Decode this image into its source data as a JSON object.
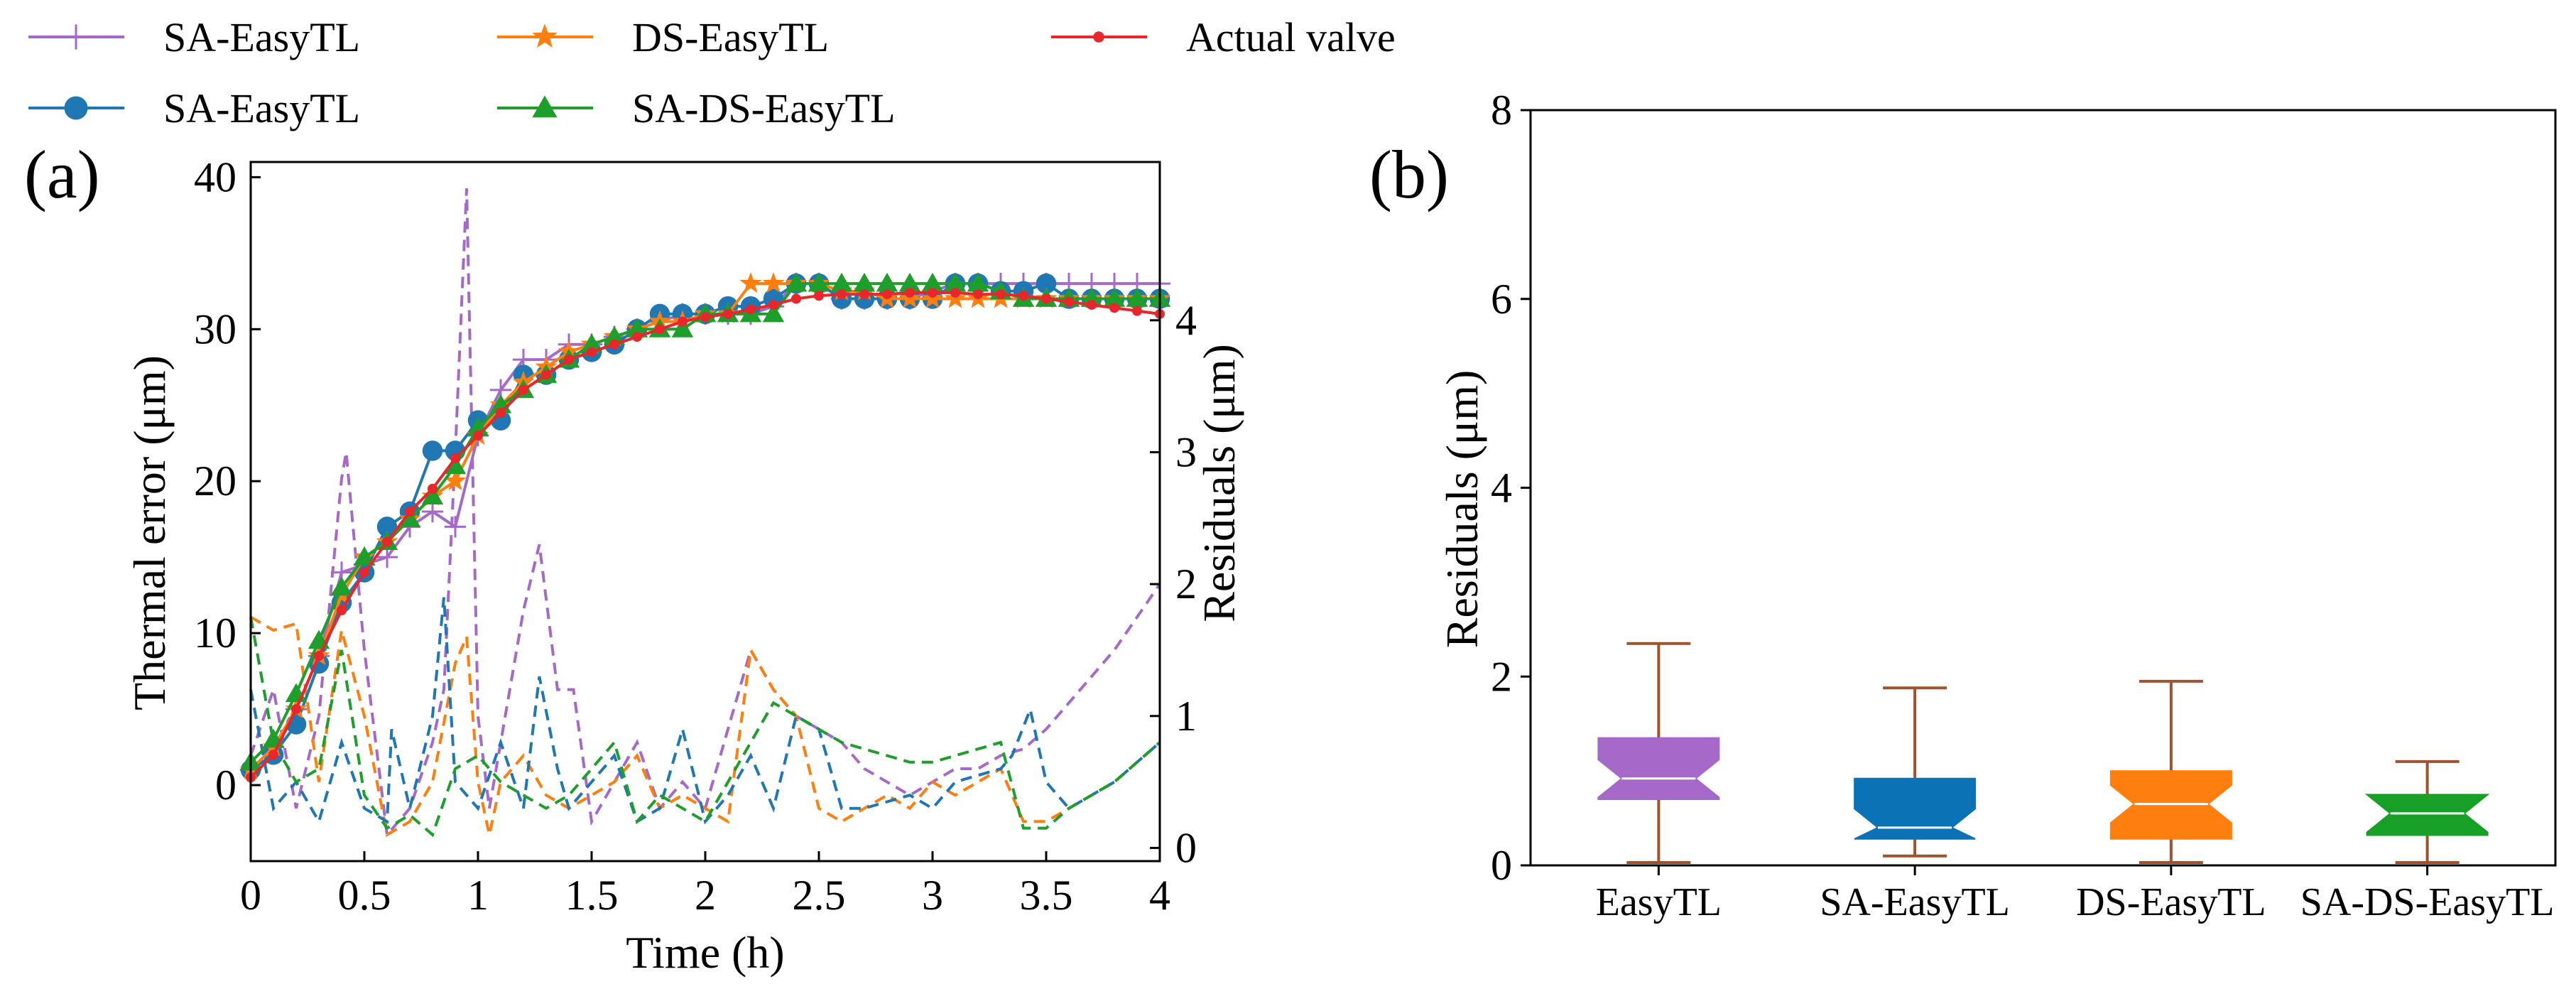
{
  "legend": {
    "items": [
      {
        "label": "SA-EasyTL",
        "color": "#a569c9",
        "marker": "plus"
      },
      {
        "label": "DS-EasyTL",
        "color": "#ff7f0e",
        "marker": "star"
      },
      {
        "label": "Actual valve",
        "color": "#e8262b",
        "marker": "dot"
      },
      {
        "label": "SA-EasyTL",
        "color": "#1f77b4",
        "marker": "circle"
      },
      {
        "label": "SA-DS-EasyTL",
        "color": "#1e9e2a",
        "marker": "triangle"
      }
    ]
  },
  "chart_data": [
    {
      "panel_label": "(a)",
      "type": "line",
      "xlabel": "Time (h)",
      "ylabel": "Thermal error (μm)",
      "y2label": "Residuals (μm)",
      "xlim": [
        0,
        4
      ],
      "ylim": [
        -5,
        41
      ],
      "y2lim": [
        -0.1,
        5.2
      ],
      "xticks": [
        0,
        0.5,
        1,
        1.5,
        2,
        2.5,
        3,
        3.5,
        4
      ],
      "xtick_labels": [
        "0",
        "0.5",
        "1",
        "1.5",
        "2",
        "2.5",
        "3",
        "3.5",
        "4"
      ],
      "yticks": [
        0,
        10,
        20,
        30,
        40
      ],
      "ytick_labels": [
        "0",
        "10",
        "20",
        "30",
        "40"
      ],
      "y2ticks": [
        0,
        1,
        2,
        3,
        4
      ],
      "y2tick_labels": [
        "0",
        "1",
        "2",
        "3",
        "4"
      ],
      "x": [
        0,
        0.1,
        0.2,
        0.3,
        0.4,
        0.5,
        0.6,
        0.7,
        0.8,
        0.9,
        1.0,
        1.1,
        1.2,
        1.3,
        1.4,
        1.5,
        1.6,
        1.7,
        1.8,
        1.9,
        2.0,
        2.1,
        2.2,
        2.3,
        2.4,
        2.5,
        2.6,
        2.7,
        2.8,
        2.9,
        3.0,
        3.1,
        3.2,
        3.3,
        3.4,
        3.5,
        3.6,
        3.7,
        3.8,
        3.9,
        4.0
      ],
      "series": [
        {
          "name": "SA-EasyTL",
          "color": "#a569c9",
          "marker": "plus",
          "values": [
            1,
            2.5,
            5,
            8.5,
            14,
            14.5,
            15,
            17,
            18,
            17,
            23,
            26,
            28,
            28,
            29,
            29,
            29.5,
            30,
            30.5,
            31,
            31,
            31,
            31,
            31.5,
            33,
            33,
            32,
            32,
            32,
            32,
            32.5,
            33,
            33,
            33,
            33,
            33,
            33,
            33,
            33,
            33,
            33
          ]
        },
        {
          "name": "SA-EasyTL",
          "color": "#1f77b4",
          "marker": "circle",
          "values": [
            1,
            2,
            4,
            8,
            12,
            14,
            17,
            18,
            22,
            22,
            24,
            24,
            27,
            27,
            28,
            28.5,
            29,
            30,
            31,
            31,
            31,
            31.5,
            31.5,
            32,
            33,
            33,
            32,
            32,
            32,
            32,
            32,
            33,
            33,
            32.5,
            32.5,
            33,
            32,
            32,
            32,
            32,
            32
          ]
        },
        {
          "name": "DS-EasyTL",
          "color": "#ff7f0e",
          "marker": "star",
          "values": [
            1,
            2.5,
            5,
            8.5,
            12.5,
            15,
            16,
            17.5,
            19,
            20,
            23,
            25,
            26.5,
            27.5,
            28.5,
            29,
            29.5,
            30,
            30.5,
            30.5,
            31,
            31,
            33,
            33,
            33,
            33,
            32.5,
            32.5,
            32,
            32,
            32,
            32,
            32,
            32,
            32,
            32,
            32,
            32,
            32,
            32,
            32
          ]
        },
        {
          "name": "SA-DS-EasyTL",
          "color": "#1e9e2a",
          "marker": "triangle",
          "values": [
            1.5,
            3,
            6,
            9.5,
            13,
            15,
            16,
            17.5,
            19,
            21,
            23.5,
            25,
            26,
            27,
            28,
            29,
            29.5,
            30,
            30,
            30,
            31,
            31,
            31,
            31,
            33,
            33,
            33,
            33,
            33,
            33,
            33,
            33,
            33,
            32.5,
            32,
            32,
            32,
            32,
            32,
            32,
            32
          ]
        },
        {
          "name": "Actual valve",
          "color": "#e8262b",
          "marker": "dot",
          "values": [
            0.5,
            2,
            5,
            8.5,
            11.5,
            14,
            16,
            18,
            19.5,
            21.5,
            23,
            24.5,
            26,
            27,
            28,
            28.5,
            29,
            29.5,
            30,
            30.5,
            30.8,
            31,
            31.3,
            31.6,
            32,
            32.2,
            32.3,
            32.3,
            32.3,
            32.4,
            32.4,
            32.4,
            32.3,
            32.3,
            32.2,
            32,
            31.8,
            31.6,
            31.4,
            31.2,
            31
          ]
        }
      ],
      "residual_series": [
        {
          "name": "SA-EasyTL",
          "color": "#a569c9",
          "x": [
            0,
            0.1,
            0.2,
            0.3,
            0.4,
            0.42,
            0.5,
            0.6,
            0.7,
            0.8,
            0.85,
            0.9,
            0.95,
            1.0,
            1.05,
            1.1,
            1.2,
            1.27,
            1.35,
            1.42,
            1.5,
            1.6,
            1.7,
            1.8,
            1.9,
            2.0,
            2.1,
            2.2,
            2.3,
            2.4,
            2.5,
            2.6,
            2.7,
            2.8,
            2.9,
            3.0,
            3.1,
            3.2,
            3.3,
            3.4,
            3.5,
            3.6,
            3.7,
            3.8,
            3.9,
            4.0
          ],
          "values": [
            0.7,
            1.2,
            0.3,
            1.0,
            2.8,
            3.0,
            1.5,
            0.1,
            0.3,
            0.8,
            1.2,
            3.0,
            5.0,
            1.0,
            0.3,
            0.8,
            1.8,
            2.3,
            1.2,
            1.2,
            0.2,
            0.5,
            0.8,
            0.3,
            0.5,
            0.3,
            0.9,
            1.5,
            1.2,
            1.0,
            0.9,
            0.8,
            0.6,
            0.5,
            0.4,
            0.5,
            0.6,
            0.6,
            0.7,
            0.75,
            0.9,
            1.1,
            1.3,
            1.5,
            1.75,
            2.0
          ]
        },
        {
          "name": "DS-EasyTL",
          "color": "#ff7f0e",
          "x": [
            0,
            0.1,
            0.2,
            0.3,
            0.4,
            0.5,
            0.6,
            0.7,
            0.8,
            0.9,
            0.95,
            1.0,
            1.05,
            1.1,
            1.2,
            1.3,
            1.4,
            1.5,
            1.6,
            1.7,
            1.8,
            1.9,
            2.0,
            2.1,
            2.2,
            2.3,
            2.4,
            2.5,
            2.6,
            2.7,
            2.8,
            2.9,
            3.0,
            3.1,
            3.2,
            3.3,
            3.4,
            3.5,
            3.6,
            3.7,
            3.8,
            3.9,
            4.0
          ],
          "values": [
            1.75,
            1.65,
            1.7,
            0.5,
            1.65,
            1.0,
            0.1,
            0.2,
            0.5,
            1.4,
            1.6,
            0.5,
            0.1,
            0.5,
            0.7,
            0.4,
            0.3,
            0.4,
            0.5,
            0.7,
            0.3,
            0.4,
            0.3,
            0.2,
            1.5,
            1.2,
            1.0,
            0.3,
            0.2,
            0.3,
            0.4,
            0.3,
            0.5,
            0.4,
            0.5,
            0.6,
            0.2,
            0.2,
            0.3,
            0.4,
            0.5,
            0.65,
            0.8
          ]
        },
        {
          "name": "SA-EasyTL",
          "color": "#1f77b4",
          "x": [
            0,
            0.1,
            0.2,
            0.3,
            0.4,
            0.5,
            0.6,
            0.62,
            0.7,
            0.8,
            0.85,
            0.9,
            1.0,
            1.1,
            1.2,
            1.27,
            1.35,
            1.4,
            1.5,
            1.6,
            1.7,
            1.8,
            1.9,
            2.0,
            2.1,
            2.2,
            2.3,
            2.4,
            2.5,
            2.6,
            2.7,
            2.8,
            2.9,
            3.0,
            3.1,
            3.2,
            3.3,
            3.35,
            3.43,
            3.5,
            3.6,
            3.7,
            3.8,
            3.9,
            4.0
          ],
          "values": [
            1.2,
            0.3,
            0.5,
            0.2,
            0.8,
            0.3,
            0.2,
            0.9,
            0.3,
            1.0,
            1.9,
            0.5,
            0.3,
            0.8,
            0.3,
            1.3,
            0.6,
            0.3,
            0.5,
            0.7,
            0.2,
            0.3,
            0.9,
            0.2,
            0.4,
            0.7,
            0.3,
            1.0,
            0.9,
            0.3,
            0.3,
            0.35,
            0.4,
            0.3,
            0.5,
            0.55,
            0.6,
            0.7,
            1.05,
            0.5,
            0.3,
            0.4,
            0.5,
            0.65,
            0.8
          ]
        },
        {
          "name": "SA-DS-EasyTL",
          "color": "#1e9e2a",
          "x": [
            0,
            0.1,
            0.2,
            0.3,
            0.4,
            0.5,
            0.6,
            0.7,
            0.8,
            0.9,
            1.0,
            1.1,
            1.2,
            1.3,
            1.4,
            1.5,
            1.6,
            1.7,
            1.8,
            1.9,
            2.0,
            2.1,
            2.2,
            2.3,
            2.4,
            2.5,
            2.6,
            2.7,
            2.8,
            2.9,
            3.0,
            3.1,
            3.2,
            3.3,
            3.4,
            3.5,
            3.6,
            3.7,
            3.8,
            3.9,
            4.0
          ],
          "values": [
            1.75,
            0.8,
            0.5,
            0.6,
            1.5,
            0.4,
            0.15,
            0.25,
            0.1,
            0.6,
            0.7,
            0.5,
            0.4,
            0.3,
            0.4,
            0.6,
            0.8,
            0.2,
            0.4,
            0.3,
            0.2,
            0.5,
            0.8,
            1.1,
            1.0,
            0.9,
            0.8,
            0.75,
            0.7,
            0.65,
            0.65,
            0.7,
            0.75,
            0.8,
            0.15,
            0.15,
            0.3,
            0.4,
            0.5,
            0.65,
            0.8
          ]
        }
      ]
    },
    {
      "panel_label": "(b)",
      "type": "box",
      "ylabel": "Residuals (μm)",
      "ylim": [
        0,
        8
      ],
      "yticks": [
        0,
        2,
        4,
        6,
        8
      ],
      "ytick_labels": [
        "0",
        "2",
        "4",
        "6",
        "8"
      ],
      "categories": [
        "EasyTL",
        "SA-EasyTL",
        "DS-EasyTL",
        "SA-DS-EasyTL"
      ],
      "boxes": [
        {
          "name": "EasyTL",
          "color": "#a569c9",
          "whisker_low": 0.03,
          "q1": 0.7,
          "median": 0.92,
          "q3": 1.35,
          "whisker_high": 2.35
        },
        {
          "name": "SA-EasyTL",
          "color": "#0a72b5",
          "whisker_low": 0.1,
          "q1": 0.28,
          "median": 0.4,
          "q3": 0.92,
          "whisker_high": 1.88
        },
        {
          "name": "DS-EasyTL",
          "color": "#ff7f0e",
          "whisker_low": 0.03,
          "q1": 0.28,
          "median": 0.65,
          "q3": 1.0,
          "whisker_high": 1.95
        },
        {
          "name": "SA-DS-EasyTL",
          "color": "#16a025",
          "whisker_low": 0.03,
          "q1": 0.32,
          "median": 0.55,
          "q3": 0.75,
          "whisker_high": 1.1
        }
      ],
      "whisker_color": "#a0522d"
    }
  ]
}
